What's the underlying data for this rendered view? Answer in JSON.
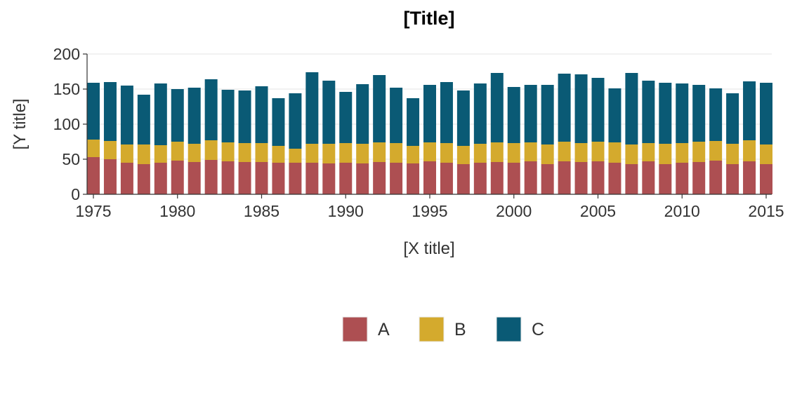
{
  "chart_data": {
    "type": "bar",
    "stacked": true,
    "title": "[Title]",
    "xlabel": "[X title]",
    "ylabel": "[Y title]",
    "x": [
      1975,
      1976,
      1977,
      1978,
      1979,
      1980,
      1981,
      1982,
      1983,
      1984,
      1985,
      1986,
      1987,
      1988,
      1989,
      1990,
      1991,
      1992,
      1993,
      1994,
      1995,
      1996,
      1997,
      1998,
      1999,
      2000,
      2001,
      2002,
      2003,
      2004,
      2005,
      2006,
      2007,
      2008,
      2009,
      2010,
      2011,
      2012,
      2013,
      2014,
      2015
    ],
    "xlim": [
      1974.6,
      1975.0
    ],
    "ylim": [
      0,
      200
    ],
    "x_ticks": [
      "1975",
      "1980",
      "1985",
      "1990",
      "1995",
      "2000",
      "2005",
      "2010",
      "2015"
    ],
    "y_ticks": [
      "0",
      "50",
      "100",
      "150",
      "200"
    ],
    "grid": "horizontal",
    "legend": "bottom",
    "series": [
      {
        "name": "A",
        "color": "#ad4f52",
        "values": [
          53,
          50,
          45,
          43,
          45,
          48,
          46,
          49,
          47,
          46,
          46,
          45,
          45,
          45,
          44,
          45,
          44,
          46,
          45,
          44,
          47,
          45,
          43,
          45,
          46,
          45,
          47,
          43,
          47,
          46,
          47,
          45,
          43,
          47,
          43,
          45,
          46,
          48,
          43,
          47,
          43
        ]
      },
      {
        "name": "B",
        "color": "#d4aa2d",
        "values": [
          25,
          26,
          26,
          28,
          25,
          27,
          26,
          28,
          27,
          27,
          27,
          24,
          20,
          27,
          28,
          28,
          28,
          28,
          28,
          25,
          27,
          28,
          26,
          27,
          28,
          28,
          27,
          28,
          28,
          27,
          28,
          29,
          28,
          26,
          29,
          28,
          29,
          28,
          29,
          30,
          28
        ]
      },
      {
        "name": "C",
        "color": "#0a5a75",
        "values": [
          81,
          84,
          84,
          71,
          88,
          75,
          80,
          87,
          75,
          75,
          81,
          68,
          79,
          102,
          90,
          73,
          85,
          96,
          79,
          68,
          82,
          87,
          79,
          86,
          99,
          80,
          82,
          85,
          97,
          98,
          91,
          77,
          102,
          89,
          87,
          85,
          81,
          75,
          72,
          84,
          88
        ]
      }
    ]
  }
}
